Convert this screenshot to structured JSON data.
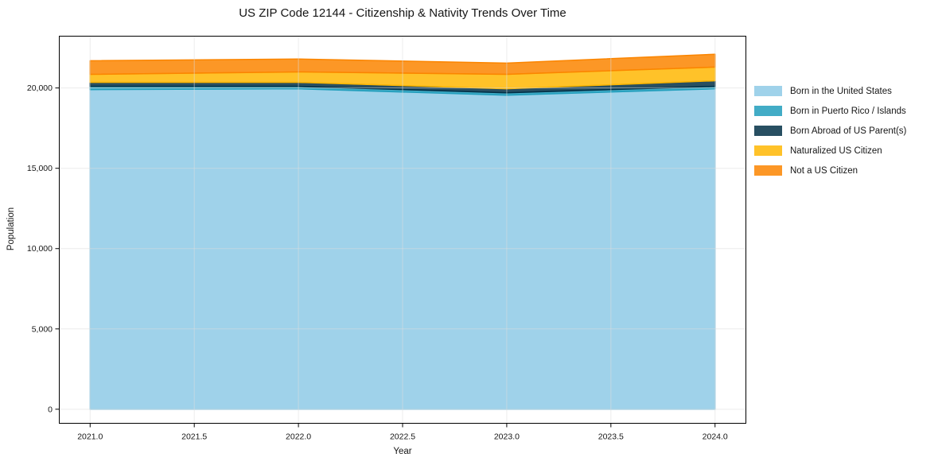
{
  "title": "US ZIP Code 12144 - Citizenship & Nativity Trends Over Time",
  "chart_data": {
    "type": "area",
    "stacked": true,
    "title": "US ZIP Code 12144 - Citizenship & Nativity Trends Over Time",
    "xlabel": "Year",
    "ylabel": "Population",
    "x": [
      2021,
      2022,
      2023,
      2024
    ],
    "series": [
      {
        "name": "Born in the United States",
        "color": "#8ECAE6",
        "values": [
          19900,
          19950,
          19550,
          19950
        ]
      },
      {
        "name": "Born in Puerto Rico / Islands",
        "color": "#219EBC",
        "values": [
          200,
          150,
          150,
          150
        ]
      },
      {
        "name": "Born Abroad of US Parent(s)",
        "color": "#023047",
        "values": [
          250,
          250,
          250,
          350
        ]
      },
      {
        "name": "Naturalized US Citizen",
        "color": "#FFB703",
        "values": [
          500,
          650,
          900,
          850
        ]
      },
      {
        "name": "Not a US Citizen",
        "color": "#FB8500",
        "values": [
          850,
          800,
          700,
          800
        ]
      }
    ],
    "totals": [
      21700,
      21800,
      21550,
      22100
    ],
    "fill_alpha": 0.85,
    "xlim": [
      2020.85,
      2024.15
    ],
    "ylim": [
      -900,
      23250
    ],
    "xticks": [
      2021.0,
      2021.5,
      2022.0,
      2022.5,
      2023.0,
      2023.5,
      2024.0
    ],
    "xtick_labels": [
      "2021.0",
      "2021.5",
      "2022.0",
      "2022.5",
      "2023.0",
      "2023.5",
      "2024.0"
    ],
    "yticks": [
      0,
      5000,
      10000,
      15000,
      20000
    ],
    "ytick_labels": [
      "0",
      "5,000",
      "10,000",
      "15,000",
      "20,000"
    ],
    "grid": true,
    "grid_color": "#dcdcdc",
    "spine_color": "#000000",
    "legend_position": "right"
  }
}
